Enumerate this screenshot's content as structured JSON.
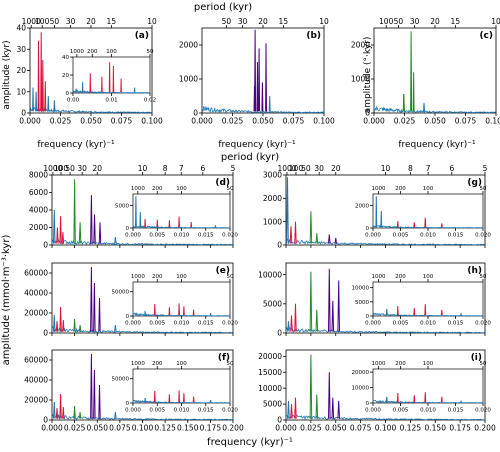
{
  "colors": {
    "blue": "#1f77b4",
    "red": "#dc143c",
    "green": "#228b22",
    "purple": "#4b0082",
    "axis": "#000000"
  },
  "labels": {
    "period_top": "period (kyr)",
    "period_bottom": "period (kyr)",
    "freq_top": "frequency (kyr)⁻¹",
    "freq_bottom": "frequency (kyr)⁻¹",
    "ylabel_a": "amplitude (kyr)",
    "ylabel_c": "amplitude (°·kyr)",
    "ylabel_grid": "amplitude (mmol·m⁻³·kyr)"
  },
  "chart_data": [
    {
      "id": "a",
      "type": "line",
      "panel_label": "(a)",
      "xlim": [
        0,
        0.1
      ],
      "ylim": [
        0,
        40
      ],
      "xticks": [
        "0.000",
        "0.025",
        "0.050",
        "0.075",
        "0.100"
      ],
      "yticks": [
        "0",
        "10",
        "20",
        "30",
        "40"
      ],
      "period_ticks": [
        "1000",
        "100",
        "50",
        "30",
        "20",
        "15",
        "10"
      ],
      "peaks": [
        {
          "x": 0.0025,
          "y": 12,
          "color": "blue"
        },
        {
          "x": 0.005,
          "y": 10,
          "color": "blue"
        },
        {
          "x": 0.007,
          "y": 34,
          "color": "red"
        },
        {
          "x": 0.0092,
          "y": 38,
          "color": "red"
        },
        {
          "x": 0.0105,
          "y": 25,
          "color": "red"
        },
        {
          "x": 0.0125,
          "y": 15,
          "color": "red"
        },
        {
          "x": 0.015,
          "y": 8,
          "color": "blue"
        },
        {
          "x": 0.02,
          "y": 6,
          "color": "blue"
        }
      ],
      "inset": {
        "xlim": [
          0,
          0.02
        ],
        "ylim": [
          0,
          40
        ],
        "xticks": [
          "0.00",
          "0.01",
          "0.02"
        ],
        "yticks": [
          "0",
          "20",
          "40"
        ],
        "period_ticks": [
          "1000",
          "200",
          "100",
          "50"
        ],
        "peaks": [
          {
            "x": 0.0008,
            "y": 5,
            "color": "blue"
          },
          {
            "x": 0.0025,
            "y": 12,
            "color": "blue"
          },
          {
            "x": 0.0045,
            "y": 22,
            "color": "red"
          },
          {
            "x": 0.0075,
            "y": 18,
            "color": "red"
          },
          {
            "x": 0.0095,
            "y": 34,
            "color": "red"
          },
          {
            "x": 0.0105,
            "y": 30,
            "color": "red"
          },
          {
            "x": 0.0125,
            "y": 16,
            "color": "red"
          },
          {
            "x": 0.016,
            "y": 6,
            "color": "blue"
          }
        ]
      }
    },
    {
      "id": "b",
      "type": "line",
      "panel_label": "(b)",
      "xlim": [
        0,
        0.1
      ],
      "ylim": [
        0,
        2500
      ],
      "xticks": [
        "0.000",
        "0.025",
        "0.050",
        "0.075",
        "0.100"
      ],
      "yticks": [
        "0",
        "1000",
        "2000"
      ],
      "period_ticks": [
        "50",
        "30",
        "20",
        "15",
        "10"
      ],
      "peaks": [
        {
          "x": 0.043,
          "y": 800,
          "color": "purple"
        },
        {
          "x": 0.0435,
          "y": 2450,
          "color": "purple"
        },
        {
          "x": 0.0455,
          "y": 1500,
          "color": "purple"
        },
        {
          "x": 0.0468,
          "y": 1900,
          "color": "purple"
        },
        {
          "x": 0.0495,
          "y": 900,
          "color": "purple"
        },
        {
          "x": 0.0525,
          "y": 2050,
          "color": "purple"
        },
        {
          "x": 0.0555,
          "y": 500,
          "color": "blue"
        }
      ]
    },
    {
      "id": "c",
      "type": "line",
      "panel_label": "(c)",
      "xlim": [
        0,
        0.1
      ],
      "ylim": [
        0,
        2500
      ],
      "xticks": [
        "0.000",
        "0.025",
        "0.050",
        "0.075",
        "0.100"
      ],
      "yticks": [
        "0",
        "1000",
        "2000"
      ],
      "period_ticks": [
        "100",
        "50",
        "30",
        "20",
        "15",
        "10"
      ],
      "peaks": [
        {
          "x": 0.0244,
          "y": 560,
          "color": "green"
        },
        {
          "x": 0.0244,
          "y": 560,
          "color": "green"
        },
        {
          "x": 0.0304,
          "y": 2400,
          "color": "green"
        },
        {
          "x": 0.0325,
          "y": 1200,
          "color": "green"
        },
        {
          "x": 0.041,
          "y": 300,
          "color": "blue"
        }
      ]
    },
    {
      "id": "d",
      "type": "line",
      "panel_label": "(d)",
      "xlim": [
        0,
        0.2
      ],
      "ylim": [
        0,
        8000
      ],
      "yticks": [
        "0",
        "2000",
        "4000",
        "6000",
        "8000"
      ],
      "peaks": [
        {
          "x": 0.0025,
          "y": 4000,
          "color": "blue"
        },
        {
          "x": 0.006,
          "y": 2000,
          "color": "red"
        },
        {
          "x": 0.0095,
          "y": 3300,
          "color": "red"
        },
        {
          "x": 0.012,
          "y": 1500,
          "color": "red"
        },
        {
          "x": 0.025,
          "y": 7500,
          "color": "green"
        },
        {
          "x": 0.031,
          "y": 2600,
          "color": "green"
        },
        {
          "x": 0.0435,
          "y": 5700,
          "color": "purple"
        },
        {
          "x": 0.047,
          "y": 3500,
          "color": "purple"
        },
        {
          "x": 0.053,
          "y": 2600,
          "color": "purple"
        },
        {
          "x": 0.07,
          "y": 900,
          "color": "blue"
        }
      ],
      "inset": {
        "xlim": [
          0,
          0.02
        ],
        "ylim": [
          0,
          7500
        ],
        "yticks": [
          "0",
          "5000"
        ],
        "xticks": [
          "0.000",
          "0.005",
          "0.010",
          "0.015",
          "0.020"
        ],
        "period_ticks": [
          "1000",
          "200",
          "100",
          "50"
        ],
        "peaks": [
          {
            "x": 0.0006,
            "y": 7000,
            "color": "blue"
          },
          {
            "x": 0.0015,
            "y": 3500,
            "color": "blue"
          },
          {
            "x": 0.0025,
            "y": 2000,
            "color": "red"
          },
          {
            "x": 0.005,
            "y": 1800,
            "color": "red"
          },
          {
            "x": 0.0075,
            "y": 1700,
            "color": "red"
          },
          {
            "x": 0.0095,
            "y": 2500,
            "color": "red"
          },
          {
            "x": 0.012,
            "y": 1300,
            "color": "red"
          },
          {
            "x": 0.017,
            "y": 600,
            "color": "blue"
          }
        ]
      }
    },
    {
      "id": "e",
      "type": "line",
      "panel_label": "(e)",
      "xlim": [
        0,
        0.2
      ],
      "ylim": [
        0,
        70000
      ],
      "yticks": [
        "0",
        "20000",
        "40000",
        "60000"
      ],
      "peaks": [
        {
          "x": 0.0025,
          "y": 18000,
          "color": "blue"
        },
        {
          "x": 0.0055,
          "y": 12000,
          "color": "red"
        },
        {
          "x": 0.0095,
          "y": 26000,
          "color": "red"
        },
        {
          "x": 0.0125,
          "y": 13000,
          "color": "red"
        },
        {
          "x": 0.025,
          "y": 14000,
          "color": "green"
        },
        {
          "x": 0.031,
          "y": 8000,
          "color": "green"
        },
        {
          "x": 0.0435,
          "y": 66000,
          "color": "purple"
        },
        {
          "x": 0.0468,
          "y": 50000,
          "color": "purple"
        },
        {
          "x": 0.0525,
          "y": 35000,
          "color": "purple"
        },
        {
          "x": 0.07,
          "y": 8000,
          "color": "blue"
        }
      ],
      "inset": {
        "xlim": [
          0,
          0.02
        ],
        "ylim": [
          0,
          70000
        ],
        "yticks": [
          "0",
          "50000"
        ],
        "xticks": [
          "0.000",
          "0.005",
          "0.010",
          "0.015",
          "0.020"
        ],
        "period_ticks": [
          "1000",
          "200",
          "100",
          "50"
        ],
        "peaks": [
          {
            "x": 0.0025,
            "y": 10000,
            "color": "blue"
          },
          {
            "x": 0.0045,
            "y": 25000,
            "color": "red"
          },
          {
            "x": 0.0075,
            "y": 18000,
            "color": "red"
          },
          {
            "x": 0.0095,
            "y": 26000,
            "color": "red"
          },
          {
            "x": 0.0105,
            "y": 20000,
            "color": "red"
          },
          {
            "x": 0.0125,
            "y": 13000,
            "color": "red"
          },
          {
            "x": 0.016,
            "y": 6000,
            "color": "blue"
          }
        ]
      }
    },
    {
      "id": "f",
      "type": "line",
      "panel_label": "(f)",
      "xlim": [
        0,
        0.2
      ],
      "ylim": [
        0,
        70000
      ],
      "yticks": [
        "0",
        "20000",
        "40000",
        "60000"
      ],
      "xticks": [
        "0.000",
        "0.025",
        "0.050",
        "0.075",
        "0.100",
        "0.125",
        "0.150",
        "0.175",
        "0.200"
      ],
      "peaks": [
        {
          "x": 0.0025,
          "y": 18000,
          "color": "blue"
        },
        {
          "x": 0.0055,
          "y": 12000,
          "color": "red"
        },
        {
          "x": 0.0095,
          "y": 26000,
          "color": "red"
        },
        {
          "x": 0.0125,
          "y": 13000,
          "color": "red"
        },
        {
          "x": 0.025,
          "y": 14000,
          "color": "green"
        },
        {
          "x": 0.031,
          "y": 8000,
          "color": "green"
        },
        {
          "x": 0.0435,
          "y": 66000,
          "color": "purple"
        },
        {
          "x": 0.0468,
          "y": 50000,
          "color": "purple"
        },
        {
          "x": 0.0525,
          "y": 35000,
          "color": "purple"
        },
        {
          "x": 0.07,
          "y": 8000,
          "color": "blue"
        }
      ],
      "inset": {
        "xlim": [
          0,
          0.02
        ],
        "ylim": [
          0,
          70000
        ],
        "yticks": [
          "0",
          "50000"
        ],
        "xticks": [
          "0.000",
          "0.005",
          "0.010",
          "0.015",
          "0.020"
        ],
        "period_ticks": [
          "1000",
          "200",
          "100",
          "50"
        ],
        "peaks": [
          {
            "x": 0.0025,
            "y": 10000,
            "color": "blue"
          },
          {
            "x": 0.0045,
            "y": 25000,
            "color": "red"
          },
          {
            "x": 0.0075,
            "y": 18000,
            "color": "red"
          },
          {
            "x": 0.0095,
            "y": 26000,
            "color": "red"
          },
          {
            "x": 0.0105,
            "y": 20000,
            "color": "red"
          },
          {
            "x": 0.0125,
            "y": 13000,
            "color": "red"
          },
          {
            "x": 0.016,
            "y": 6000,
            "color": "blue"
          }
        ]
      }
    },
    {
      "id": "g",
      "type": "line",
      "panel_label": "(g)",
      "xlim": [
        0,
        0.2
      ],
      "ylim": [
        0,
        3000
      ],
      "yticks": [
        "0",
        "1000",
        "2000",
        "3000"
      ],
      "peaks": [
        {
          "x": 0.0015,
          "y": 2900,
          "color": "blue"
        },
        {
          "x": 0.005,
          "y": 800,
          "color": "red"
        },
        {
          "x": 0.0095,
          "y": 1000,
          "color": "red"
        },
        {
          "x": 0.025,
          "y": 1450,
          "color": "green"
        },
        {
          "x": 0.031,
          "y": 500,
          "color": "green"
        },
        {
          "x": 0.0435,
          "y": 450,
          "color": "purple"
        },
        {
          "x": 0.05,
          "y": 300,
          "color": "purple"
        }
      ],
      "inset": {
        "xlim": [
          0,
          0.02
        ],
        "ylim": [
          0,
          3000
        ],
        "yticks": [
          "0",
          "2000"
        ],
        "xticks": [
          "0.000",
          "0.005",
          "0.010",
          "0.015",
          "0.020"
        ],
        "period_ticks": [
          "1000",
          "200",
          "100",
          "50"
        ],
        "peaks": [
          {
            "x": 0.0006,
            "y": 2800,
            "color": "blue"
          },
          {
            "x": 0.0015,
            "y": 1500,
            "color": "blue"
          },
          {
            "x": 0.0045,
            "y": 600,
            "color": "red"
          },
          {
            "x": 0.0075,
            "y": 500,
            "color": "red"
          },
          {
            "x": 0.0095,
            "y": 900,
            "color": "red"
          },
          {
            "x": 0.0125,
            "y": 400,
            "color": "red"
          }
        ]
      }
    },
    {
      "id": "h",
      "type": "line",
      "panel_label": "(h)",
      "xlim": [
        0,
        0.2
      ],
      "ylim": [
        0,
        12000
      ],
      "yticks": [
        "0",
        "5000",
        "10000"
      ],
      "peaks": [
        {
          "x": 0.0025,
          "y": 2000,
          "color": "blue"
        },
        {
          "x": 0.0055,
          "y": 3000,
          "color": "red"
        },
        {
          "x": 0.0095,
          "y": 5000,
          "color": "red"
        },
        {
          "x": 0.025,
          "y": 10500,
          "color": "green"
        },
        {
          "x": 0.031,
          "y": 4000,
          "color": "green"
        },
        {
          "x": 0.0435,
          "y": 11000,
          "color": "purple"
        },
        {
          "x": 0.047,
          "y": 5500,
          "color": "purple"
        },
        {
          "x": 0.053,
          "y": 9000,
          "color": "purple"
        }
      ],
      "inset": {
        "xlim": [
          0,
          0.02
        ],
        "ylim": [
          0,
          12000
        ],
        "yticks": [
          "0",
          "5000",
          "10000"
        ],
        "xticks": [
          "0.000",
          "0.005",
          "0.010",
          "0.015",
          "0.020"
        ],
        "period_ticks": [
          "1000",
          "200",
          "100",
          "50"
        ],
        "peaks": [
          {
            "x": 0.0025,
            "y": 2500,
            "color": "blue"
          },
          {
            "x": 0.0045,
            "y": 3500,
            "color": "red"
          },
          {
            "x": 0.0075,
            "y": 2800,
            "color": "red"
          },
          {
            "x": 0.0095,
            "y": 4200,
            "color": "red"
          },
          {
            "x": 0.0125,
            "y": 2200,
            "color": "red"
          },
          {
            "x": 0.016,
            "y": 900,
            "color": "blue"
          }
        ]
      }
    },
    {
      "id": "i",
      "type": "line",
      "panel_label": "(i)",
      "xlim": [
        0,
        0.2
      ],
      "ylim": [
        0,
        22000
      ],
      "yticks": [
        "0",
        "5000",
        "10000",
        "15000",
        "20000"
      ],
      "xticks": [
        "0.000",
        "0.025",
        "0.050",
        "0.075",
        "0.100",
        "0.125",
        "0.150",
        "0.175",
        "0.200"
      ],
      "peaks": [
        {
          "x": 0.0025,
          "y": 6000,
          "color": "blue"
        },
        {
          "x": 0.0055,
          "y": 5000,
          "color": "red"
        },
        {
          "x": 0.0095,
          "y": 7000,
          "color": "red"
        },
        {
          "x": 0.025,
          "y": 20500,
          "color": "green"
        },
        {
          "x": 0.031,
          "y": 8000,
          "color": "green"
        },
        {
          "x": 0.0435,
          "y": 15000,
          "color": "purple"
        },
        {
          "x": 0.047,
          "y": 7000,
          "color": "purple"
        },
        {
          "x": 0.053,
          "y": 6000,
          "color": "purple"
        }
      ],
      "inset": {
        "xlim": [
          0,
          0.02
        ],
        "ylim": [
          0,
          22000
        ],
        "yticks": [
          "0",
          "10000",
          "20000"
        ],
        "xticks": [
          "0.000",
          "0.005",
          "0.010",
          "0.015",
          "0.020"
        ],
        "period_ticks": [
          "1000",
          "200",
          "100",
          "50"
        ],
        "peaks": [
          {
            "x": 0.0025,
            "y": 4000,
            "color": "blue"
          },
          {
            "x": 0.0045,
            "y": 6500,
            "color": "red"
          },
          {
            "x": 0.0075,
            "y": 5000,
            "color": "red"
          },
          {
            "x": 0.0095,
            "y": 7000,
            "color": "red"
          },
          {
            "x": 0.0125,
            "y": 4000,
            "color": "red"
          },
          {
            "x": 0.016,
            "y": 1500,
            "color": "blue"
          }
        ]
      }
    }
  ],
  "grid_period_ticks": [
    "1000",
    "100",
    "50",
    "30",
    "20",
    "10",
    "8",
    "7",
    "6",
    "5"
  ]
}
